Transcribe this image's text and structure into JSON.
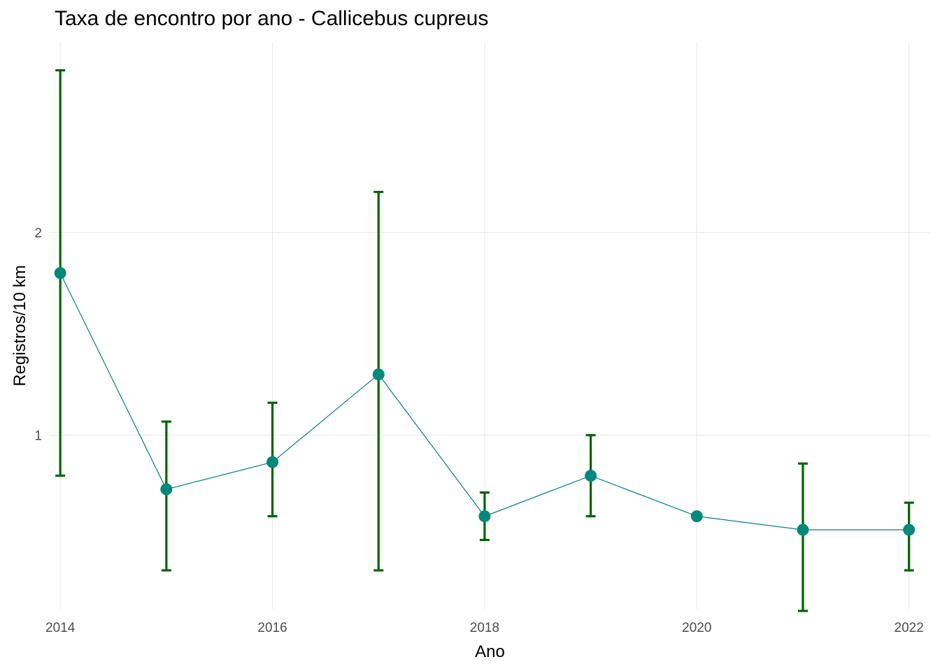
{
  "chart_data": {
    "type": "line",
    "title": "Taxa de encontro por ano - Callicebus cupreus",
    "xlabel": "Ano",
    "ylabel": "Registros/10 km",
    "x_ticks": [
      2014,
      2016,
      2018,
      2020,
      2022
    ],
    "y_ticks": [
      1,
      2
    ],
    "xlim": [
      2013.9,
      2022.2
    ],
    "ylim": [
      0.14,
      2.94
    ],
    "grid": true,
    "colors": {
      "line": "#008080",
      "point": "#00897b",
      "errorbar": "#006400",
      "grid": "#ebebeb"
    },
    "x": [
      2014,
      2015,
      2016,
      2017,
      2018,
      2019,
      2020,
      2021,
      2022
    ],
    "y": [
      1.8,
      0.733,
      0.867,
      1.3,
      0.6,
      0.8,
      0.6,
      0.533,
      0.533
    ],
    "ci_lower": [
      0.8,
      0.333,
      0.6,
      0.333,
      0.483,
      0.6,
      0.6,
      0.133,
      0.333
    ],
    "ci_upper": [
      2.8,
      1.067,
      1.16,
      2.2,
      0.717,
      1.0,
      0.6,
      0.86,
      0.667
    ]
  }
}
